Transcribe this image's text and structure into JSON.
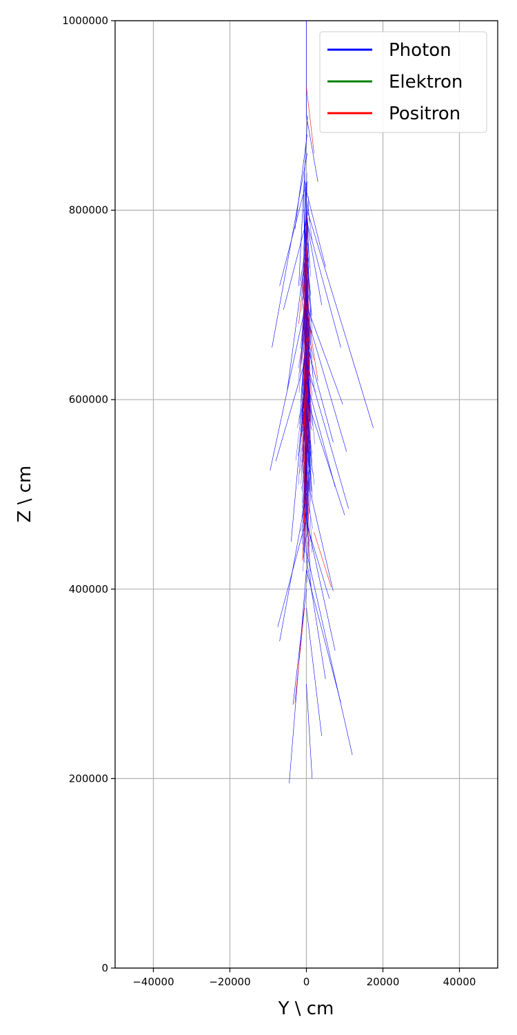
{
  "chart_data": {
    "type": "line",
    "xlabel": "Y \\ cm",
    "ylabel": "Z \\ cm",
    "xlim": [
      -50000,
      50000
    ],
    "ylim": [
      0,
      1000000
    ],
    "x_ticks": [
      -40000,
      -20000,
      0,
      20000,
      40000
    ],
    "x_tick_labels": [
      "−40000",
      "−20000",
      "0",
      "20000",
      "40000"
    ],
    "y_ticks": [
      0,
      200000,
      400000,
      600000,
      800000,
      1000000
    ],
    "y_tick_labels": [
      "0",
      "200000",
      "400000",
      "600000",
      "800000",
      "1000000"
    ],
    "grid": true,
    "legend": {
      "placement": "top-right"
    },
    "series": [
      {
        "name": "Photon",
        "color": "#0000ff"
      },
      {
        "name": "Elektron",
        "color": "#008000"
      },
      {
        "name": "Positron",
        "color": "#ff0000"
      }
    ],
    "segments": [
      {
        "series": "Photon",
        "x": [
          0,
          0
        ],
        "y": [
          1000000,
          900000
        ]
      },
      {
        "series": "Photon",
        "x": [
          -2000,
          300
        ],
        "y": [
          720000,
          900000
        ]
      },
      {
        "series": "Photon",
        "x": [
          -9000,
          200
        ],
        "y": [
          655000,
          860000
        ]
      },
      {
        "series": "Photon",
        "x": [
          -7000,
          0
        ],
        "y": [
          720000,
          830000
        ]
      },
      {
        "series": "Photon",
        "x": [
          -6000,
          100
        ],
        "y": [
          695000,
          790000
        ]
      },
      {
        "series": "Photon",
        "x": [
          -9500,
          -200
        ],
        "y": [
          525000,
          700000
        ]
      },
      {
        "series": "Photon",
        "x": [
          -8000,
          300
        ],
        "y": [
          535000,
          650000
        ]
      },
      {
        "series": "Photon",
        "x": [
          -7000,
          0
        ],
        "y": [
          345000,
          500000
        ]
      },
      {
        "series": "Photon",
        "x": [
          -7500,
          -300
        ],
        "y": [
          360000,
          470000
        ]
      },
      {
        "series": "Photon",
        "x": [
          -4500,
          0
        ],
        "y": [
          195000,
          420000
        ]
      },
      {
        "series": "Photon",
        "x": [
          -3500,
          0
        ],
        "y": [
          278000,
          400000
        ]
      },
      {
        "series": "Photon",
        "x": [
          -4000,
          -200
        ],
        "y": [
          450000,
          620000
        ]
      },
      {
        "series": "Photon",
        "x": [
          -5000,
          0
        ],
        "y": [
          610000,
          760000
        ]
      },
      {
        "series": "Photon",
        "x": [
          -3000,
          200
        ],
        "y": [
          780000,
          880000
        ]
      },
      {
        "series": "Photon",
        "x": [
          17500,
          200
        ],
        "y": [
          570000,
          800000
        ]
      },
      {
        "series": "Photon",
        "x": [
          9500,
          0
        ],
        "y": [
          595000,
          700000
        ]
      },
      {
        "series": "Photon",
        "x": [
          9000,
          0
        ],
        "y": [
          655000,
          790000
        ]
      },
      {
        "series": "Photon",
        "x": [
          10500,
          0
        ],
        "y": [
          545000,
          690000
        ]
      },
      {
        "series": "Photon",
        "x": [
          11000,
          0
        ],
        "y": [
          485000,
          640000
        ]
      },
      {
        "series": "Photon",
        "x": [
          10000,
          200
        ],
        "y": [
          478000,
          600000
        ]
      },
      {
        "series": "Photon",
        "x": [
          7000,
          0
        ],
        "y": [
          555000,
          660000
        ]
      },
      {
        "series": "Photon",
        "x": [
          7500,
          0
        ],
        "y": [
          508000,
          620000
        ]
      },
      {
        "series": "Photon",
        "x": [
          12000,
          0
        ],
        "y": [
          225000,
          440000
        ]
      },
      {
        "series": "Photon",
        "x": [
          9000,
          0
        ],
        "y": [
          280000,
          420000
        ]
      },
      {
        "series": "Photon",
        "x": [
          7500,
          200
        ],
        "y": [
          335000,
          470000
        ]
      },
      {
        "series": "Photon",
        "x": [
          4000,
          0
        ],
        "y": [
          245000,
          380000
        ]
      },
      {
        "series": "Photon",
        "x": [
          5000,
          100
        ],
        "y": [
          305000,
          430000
        ]
      },
      {
        "series": "Photon",
        "x": [
          7000,
          0
        ],
        "y": [
          398000,
          520000
        ]
      },
      {
        "series": "Photon",
        "x": [
          6000,
          0
        ],
        "y": [
          390000,
          470000
        ]
      },
      {
        "series": "Photon",
        "x": [
          3000,
          0
        ],
        "y": [
          830000,
          900000
        ]
      },
      {
        "series": "Photon",
        "x": [
          4000,
          0
        ],
        "y": [
          700000,
          790000
        ]
      },
      {
        "series": "Photon",
        "x": [
          5000,
          0
        ],
        "y": [
          740000,
          820000
        ]
      },
      {
        "series": "Photon",
        "x": [
          1500,
          0
        ],
        "y": [
          200000,
          300000
        ]
      },
      {
        "series": "Positron",
        "x": [
          -3000,
          -500
        ],
        "y": [
          280000,
          380000
        ]
      },
      {
        "series": "Positron",
        "x": [
          6500,
          2000
        ],
        "y": [
          402000,
          460000
        ]
      },
      {
        "series": "Positron",
        "x": [
          -1000,
          0
        ],
        "y": [
          430000,
          520000
        ]
      },
      {
        "series": "Positron",
        "x": [
          -2000,
          0
        ],
        "y": [
          680000,
          760000
        ]
      },
      {
        "series": "Positron",
        "x": [
          2000,
          0
        ],
        "y": [
          860000,
          930000
        ]
      },
      {
        "series": "Positron",
        "x": [
          3000,
          0
        ],
        "y": [
          620000,
          700000
        ]
      },
      {
        "series": "Positron",
        "x": [
          -1500,
          200
        ],
        "y": [
          560000,
          620000
        ]
      }
    ],
    "bundle": [
      {
        "series": "Photon",
        "count": 320,
        "z_min": 280000,
        "z_max": 960000,
        "z_center": 620000,
        "y_sigma": 1400
      },
      {
        "series": "Positron",
        "count": 60,
        "z_min": 300000,
        "z_max": 930000,
        "z_center": 620000,
        "y_sigma": 1200
      }
    ]
  }
}
